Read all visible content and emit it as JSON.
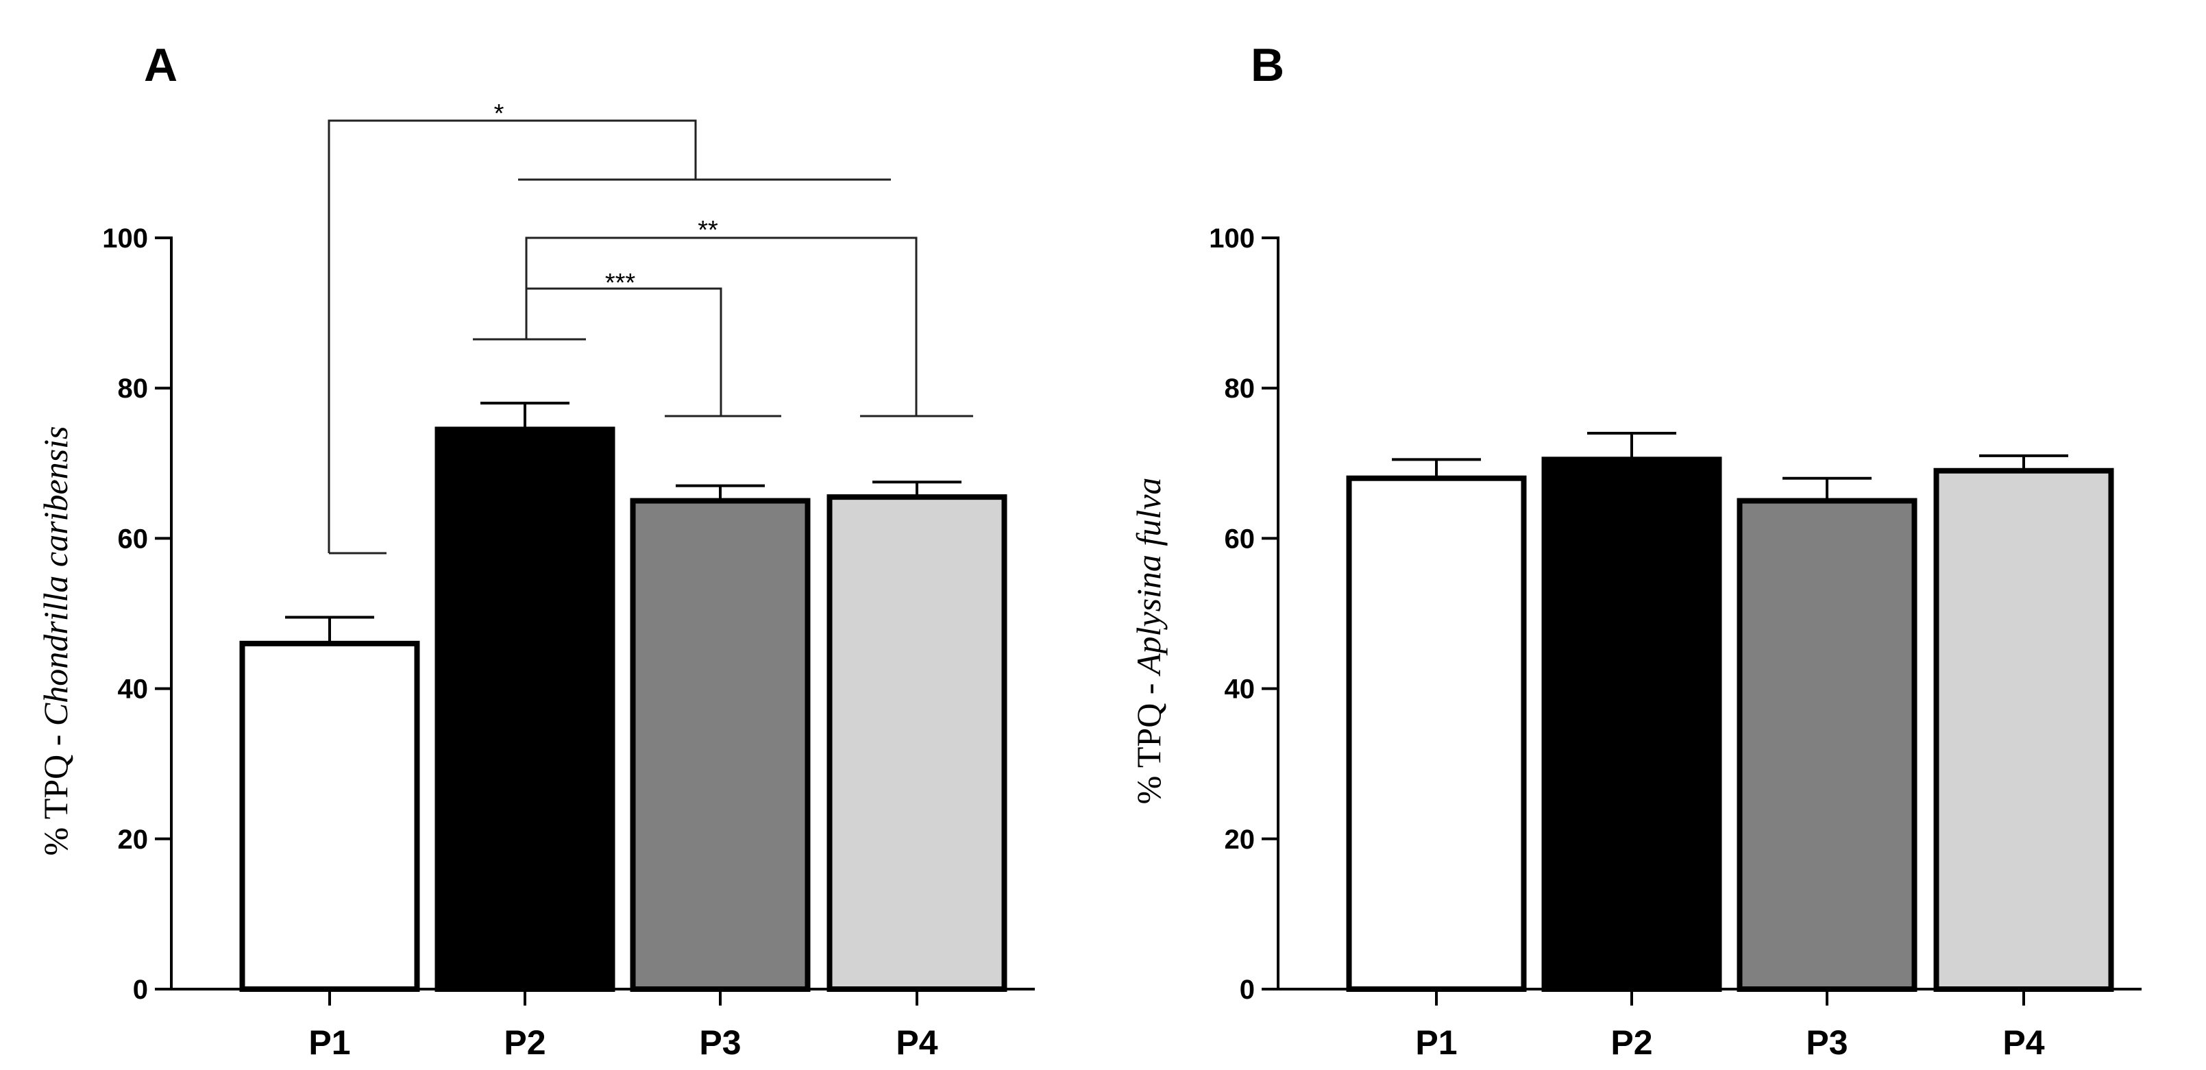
{
  "chart_data": [
    {
      "type": "bar",
      "panel_label": "A",
      "ylabel_prefix": "% TPQ - ",
      "ylabel_species": "Chondrilla caribensis",
      "categories": [
        "P1",
        "P2",
        "P3",
        "P4"
      ],
      "values": [
        46,
        74.5,
        65,
        65.5
      ],
      "errors": [
        3.5,
        3.5,
        2,
        2
      ],
      "colors": [
        "#ffffff",
        "#000000",
        "#808080",
        "#d3d3d3"
      ],
      "ylim": [
        0,
        100
      ],
      "yticks": [
        "0",
        "20",
        "40",
        "60",
        "80",
        "100"
      ],
      "significance": [
        {
          "label": "*",
          "from": "P1",
          "to": "P2-P4"
        },
        {
          "label": "**",
          "from": "P2",
          "to": "P4"
        },
        {
          "label": "***",
          "from": "P2",
          "to": "P3"
        }
      ]
    },
    {
      "type": "bar",
      "panel_label": "B",
      "ylabel_prefix": "% TPQ - ",
      "ylabel_species": "Aplysina fulva",
      "categories": [
        "P1",
        "P2",
        "P3",
        "P4"
      ],
      "values": [
        68,
        70.5,
        65,
        69
      ],
      "errors": [
        2.5,
        3.5,
        3,
        2
      ],
      "colors": [
        "#ffffff",
        "#000000",
        "#808080",
        "#d3d3d3"
      ],
      "ylim": [
        0,
        100
      ],
      "yticks": [
        "0",
        "20",
        "40",
        "60",
        "80",
        "100"
      ],
      "significance": []
    }
  ]
}
